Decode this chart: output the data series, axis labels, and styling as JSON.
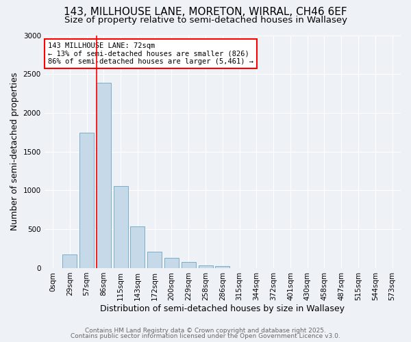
{
  "title": "143, MILLHOUSE LANE, MORETON, WIRRAL, CH46 6EF",
  "subtitle": "Size of property relative to semi-detached houses in Wallasey",
  "xlabel": "Distribution of semi-detached houses by size in Wallasey",
  "ylabel": "Number of semi-detached properties",
  "bar_labels": [
    "0sqm",
    "29sqm",
    "57sqm",
    "86sqm",
    "115sqm",
    "143sqm",
    "172sqm",
    "200sqm",
    "229sqm",
    "258sqm",
    "286sqm",
    "315sqm",
    "344sqm",
    "372sqm",
    "401sqm",
    "430sqm",
    "458sqm",
    "487sqm",
    "515sqm",
    "544sqm",
    "573sqm"
  ],
  "bar_values": [
    0,
    175,
    1740,
    2390,
    1060,
    540,
    210,
    135,
    80,
    35,
    25,
    0,
    0,
    0,
    0,
    0,
    0,
    0,
    0,
    0,
    0
  ],
  "bar_color": "#c6d9e8",
  "bar_edge_color": "#7baec8",
  "property_sqm": 72,
  "pct_smaller": 13,
  "n_smaller": 826,
  "pct_larger": 86,
  "n_larger": 5461,
  "annotation_line1": "143 MILLHOUSE LANE: 72sqm",
  "annotation_line2": "← 13% of semi-detached houses are smaller (826)",
  "annotation_line3": "86% of semi-detached houses are larger (5,461) →",
  "red_line_x": 2.6,
  "ylim": [
    0,
    3000
  ],
  "yticks": [
    0,
    500,
    1000,
    1500,
    2000,
    2500,
    3000
  ],
  "footer1": "Contains HM Land Registry data © Crown copyright and database right 2025.",
  "footer2": "Contains public sector information licensed under the Open Government Licence v3.0.",
  "bg_color": "#eef2f7",
  "plot_bg_color": "#eef2f7",
  "title_fontsize": 11,
  "subtitle_fontsize": 9.5,
  "axis_label_fontsize": 9,
  "tick_fontsize": 7.5,
  "footer_fontsize": 6.5
}
